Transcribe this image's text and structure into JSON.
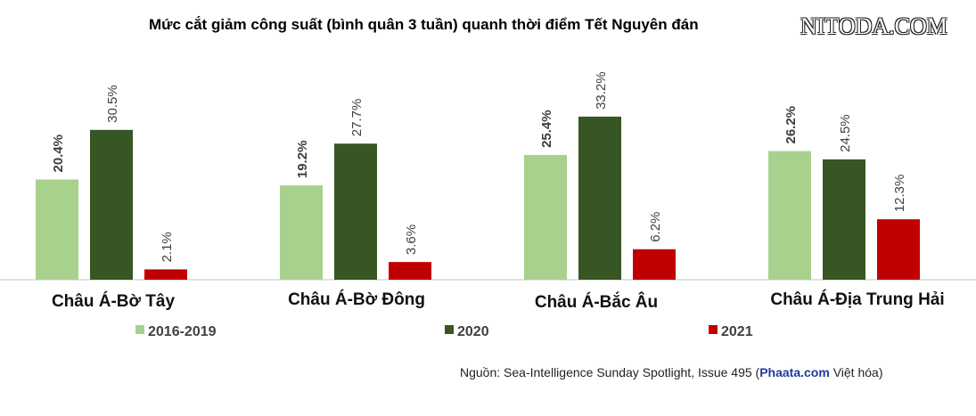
{
  "title": "Mức cắt giảm công suất (bình quân 3 tuần) quanh thời điểm Tết Nguyên đán",
  "watermark": "NITODA.COM",
  "chart_data": {
    "type": "bar",
    "categories": [
      "Châu Á-Bờ Tây",
      "Châu Á-Bờ Đông",
      "Châu Á-Bắc Âu",
      "Châu Á-Địa Trung Hải"
    ],
    "series": [
      {
        "name": "2016-2019",
        "color": "#a9d18e",
        "values": [
          20.4,
          19.2,
          25.4,
          26.2
        ],
        "labels": [
          "20.4%",
          "19.2%",
          "25.4%",
          "26.2%"
        ]
      },
      {
        "name": "2020",
        "color": "#375623",
        "values": [
          30.5,
          27.7,
          33.2,
          24.5
        ],
        "labels": [
          "30.5%",
          "27.7%",
          "33.2%",
          "24.5%"
        ]
      },
      {
        "name": "2021",
        "color": "#c00000",
        "values": [
          2.1,
          3.6,
          6.2,
          12.3
        ],
        "labels": [
          "2.1%",
          "3.6%",
          "6.2%",
          "12.3%"
        ]
      }
    ],
    "ylim": [
      0,
      35
    ],
    "grid": false,
    "legend": "bottom"
  },
  "source": {
    "prefix": "Nguồn: Sea-Intelligence Sunday Spotlight, Issue 495 (",
    "brand": "Phaata.com",
    "suffix": " Việt hóa)"
  }
}
